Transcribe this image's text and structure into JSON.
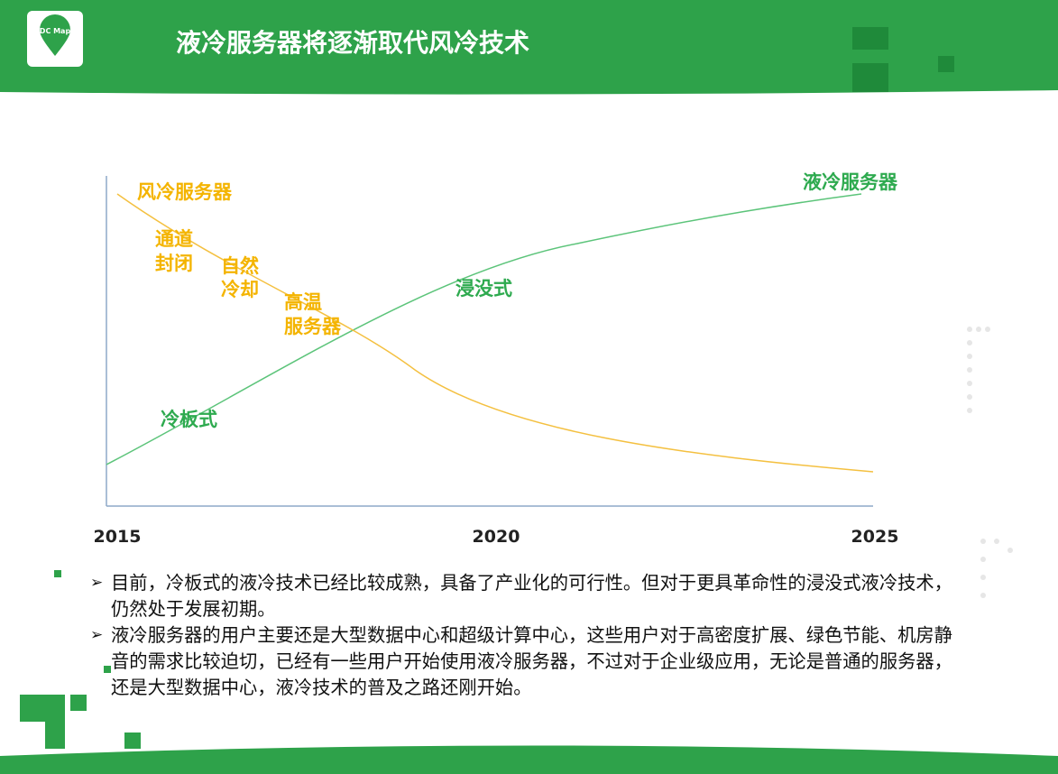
{
  "header": {
    "logo": "DC Map",
    "title": "液冷服务器将逐渐取代风冷技术"
  },
  "chart": {
    "xlim": [
      2015,
      2025
    ],
    "xticks": [
      2015,
      2020,
      2025
    ],
    "annotations": {
      "air_server": "风冷服务器",
      "channel": [
        "通道",
        "封闭"
      ],
      "natural": [
        "自然",
        "冷却"
      ],
      "high_temp": [
        "高温",
        "服务器"
      ],
      "liquid_server": "液冷服务器",
      "immersion": "浸没式",
      "cold_plate": "冷板式"
    }
  },
  "bullets": [
    "目前，冷板式的液冷技术已经比较成熟，具备了产业化的可行性。但对于更具革命性的浸没式液冷技术，仍然处于发展初期。",
    "液冷服务器的用户主要还是大型数据中心和超级计算中心，这些用户对于高密度扩展、绿色节能、机房静音的需求比较迫切，已经有一些用户开始使用液冷服务器，不过对于企业级应用，无论是普通的服务器，还是大型数据中心，液冷技术的普及之路还刚开始。"
  ]
}
